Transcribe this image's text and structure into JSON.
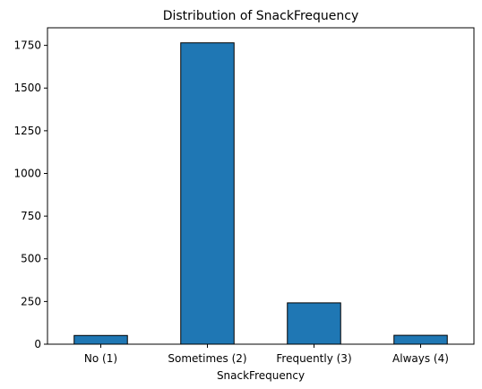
{
  "chart_data": {
    "type": "bar",
    "title": "Distribution of SnackFrequency",
    "xlabel": "SnackFrequency",
    "ylabel": "",
    "categories": [
      "No (1)",
      "Sometimes (2)",
      "Frequently (3)",
      "Always (4)"
    ],
    "values": [
      51,
      1765,
      242,
      52
    ],
    "ylim": [
      0,
      1853
    ],
    "yticks": [
      0,
      250,
      500,
      750,
      1000,
      1250,
      1500,
      1750
    ],
    "bar_color": "#1f77b4",
    "edge_color": "#000000",
    "grid": false,
    "legend": "none"
  }
}
